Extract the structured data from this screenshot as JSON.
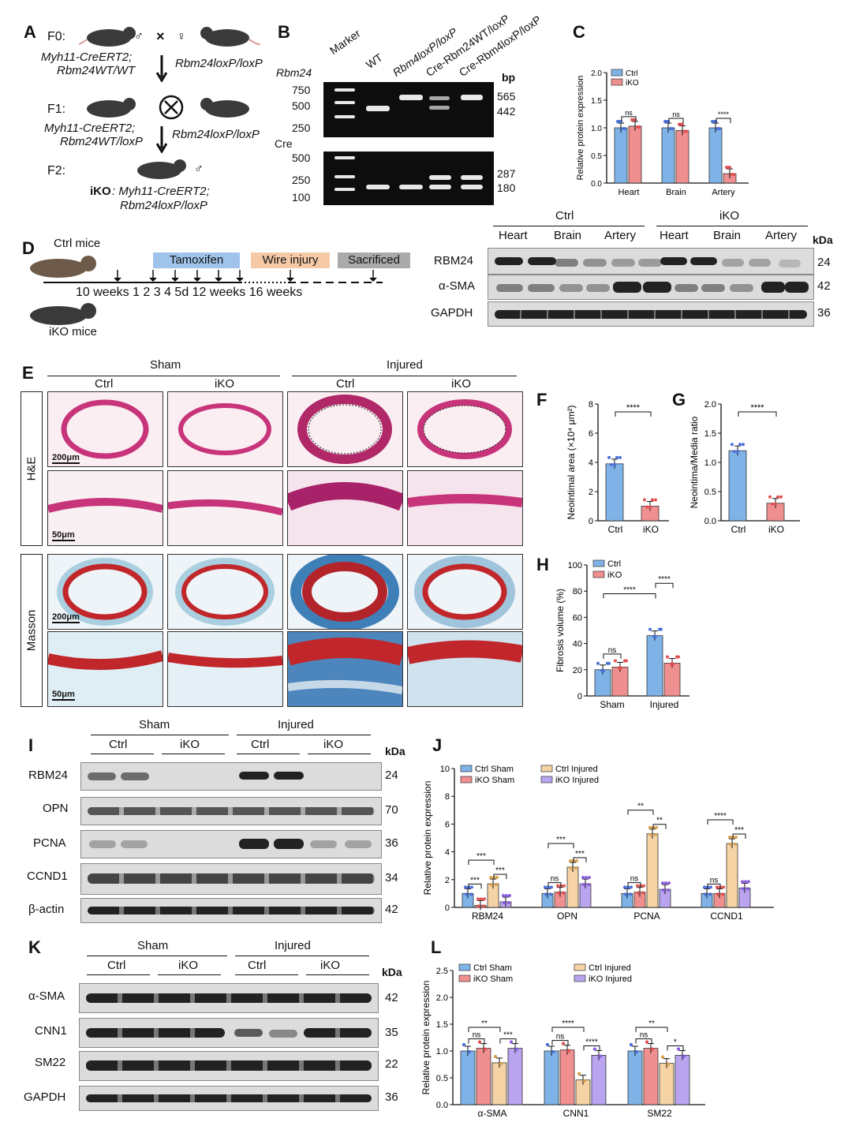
{
  "panels": {
    "A": "A",
    "B": "B",
    "C": "C",
    "D": "D",
    "E": "E",
    "F": "F",
    "G": "G",
    "H": "H",
    "I": "I",
    "J": "J",
    "K": "K",
    "L": "L"
  },
  "panelA": {
    "f0": "F0:",
    "f1": "F1:",
    "f2": "F2:",
    "g0": "Myh11-CreERT2;",
    "g0b": "Rbm24WT/WT",
    "g0r": "Rbm24loxP/loxP",
    "g1": "Myh11-CreERT2;",
    "g1b": "Rbm24WT/loxP",
    "g1r": "Rbm24loxP/loxP",
    "ikoLabel": "iKO",
    "ikoGenotype": ": Myh11-CreERT2;",
    "ikoGenotype2": "Rbm24loxP/loxP",
    "male": "♂",
    "female": "♀",
    "cross": "×"
  },
  "panelB": {
    "gene1": "Rbm24",
    "gene2": "Cre",
    "lanes": [
      "Marker",
      "WT",
      "Rbm4loxP/loxP",
      "Cre-Rbm24WT/loxP",
      "Cre-Rbm4loxP/loxP"
    ],
    "ladder1": [
      "750",
      "500",
      "250"
    ],
    "ladder2": [
      "500",
      "250",
      "100"
    ],
    "sizes1": [
      "565",
      "442"
    ],
    "sizes2": [
      "287",
      "180"
    ],
    "bp": "bp"
  },
  "panelD": {
    "ctrlMice": "Ctrl mice",
    "ikoMice": "iKO mice",
    "tamoxifen": "Tamoxifen",
    "wire": "Wire injury",
    "sacrificed": "Sacrificed",
    "timeline": "10 weeks  1   2   3   4  5d  12 weeks    16 weeks"
  },
  "blotD": {
    "groups": [
      "Ctrl",
      "iKO"
    ],
    "tissues": [
      "Heart",
      "Brain",
      "Artery",
      "Heart",
      "Brain",
      "Artery"
    ],
    "rows": [
      "RBM24",
      "α-SMA",
      "GAPDH"
    ],
    "kda": [
      "24",
      "42",
      "36"
    ],
    "kdaHeader": "kDa"
  },
  "panelE": {
    "sham": "Sham",
    "injured": "Injured",
    "ctrl": "Ctrl",
    "iko": "iKO",
    "he": "H&E",
    "masson": "Masson",
    "scale200": "200μm",
    "scale50": "50μm"
  },
  "blotI": {
    "groups": [
      "Sham",
      "Injured"
    ],
    "sub": [
      "Ctrl",
      "iKO",
      "Ctrl",
      "iKO"
    ],
    "rows": [
      "RBM24",
      "OPN",
      "PCNA",
      "CCND1",
      "β-actin"
    ],
    "kda": [
      "24",
      "70",
      "36",
      "34",
      "42"
    ],
    "kdaHeader": "kDa"
  },
  "blotK": {
    "groups": [
      "Sham",
      "Injured"
    ],
    "sub": [
      "Ctrl",
      "iKO",
      "Ctrl",
      "iKO"
    ],
    "rows": [
      "α-SMA",
      "CNN1",
      "SM22",
      "GAPDH"
    ],
    "kda": [
      "42",
      "35",
      "22",
      "36"
    ],
    "kdaHeader": "kDa"
  },
  "colors": {
    "ctrl": "#7fb3e8",
    "iko": "#f08f8f",
    "ctrlInj": "#f6d3a5",
    "ikoInj": "#b9a4ef"
  },
  "chart_data": [
    {
      "id": "C",
      "type": "bar",
      "ylabel": "Relative protein expression",
      "ylim": [
        0,
        2.0
      ],
      "yticks": [
        "0.0",
        "0.5",
        "1.0",
        "1.5",
        "2.0"
      ],
      "categories": [
        "Heart",
        "Brain",
        "Artery"
      ],
      "series": [
        {
          "name": "Ctrl",
          "values": [
            1.0,
            1.0,
            1.0
          ]
        },
        {
          "name": "iKO",
          "values": [
            1.03,
            0.95,
            0.17
          ]
        }
      ],
      "annotations": [
        "ns",
        "ns",
        "****"
      ]
    },
    {
      "id": "F",
      "type": "bar",
      "ylabel": "Neointimal area (×10⁴ μm²)",
      "ylim": [
        0,
        8
      ],
      "yticks": [
        "0",
        "2",
        "4",
        "6",
        "8"
      ],
      "categories": [
        "Ctrl",
        "iKO"
      ],
      "values": [
        3.9,
        1.0
      ],
      "annotations": [
        "****"
      ]
    },
    {
      "id": "G",
      "type": "bar",
      "ylabel": "Neointima/Media ratio",
      "ylim": [
        0,
        2.0
      ],
      "yticks": [
        "0.0",
        "0.5",
        "1.0",
        "1.5",
        "2.0"
      ],
      "categories": [
        "Ctrl",
        "iKO"
      ],
      "values": [
        1.2,
        0.3
      ],
      "annotations": [
        "****"
      ]
    },
    {
      "id": "H",
      "type": "bar",
      "ylabel": "Fibrosis volume (%)",
      "ylim": [
        0,
        100
      ],
      "yticks": [
        "0",
        "20",
        "40",
        "60",
        "80",
        "100"
      ],
      "categories": [
        "Sham",
        "Injured"
      ],
      "series": [
        {
          "name": "Ctrl",
          "values": [
            20,
            46
          ]
        },
        {
          "name": "iKO",
          "values": [
            22,
            25
          ]
        }
      ],
      "annotations": [
        "ns",
        "****",
        "****"
      ]
    },
    {
      "id": "J",
      "type": "bar",
      "ylabel": "Relative protein expression",
      "ylim": [
        0,
        10
      ],
      "yticks": [
        "0",
        "2",
        "4",
        "6",
        "8",
        "10"
      ],
      "categories": [
        "RBM24",
        "OPN",
        "PCNA",
        "CCND1"
      ],
      "series": [
        {
          "name": "Ctrl Sham",
          "values": [
            1.0,
            1.0,
            1.0,
            1.0
          ]
        },
        {
          "name": "iKO Sham",
          "values": [
            0.15,
            1.1,
            1.1,
            1.0
          ]
        },
        {
          "name": "Ctrl Injured",
          "values": [
            1.7,
            2.9,
            5.3,
            4.6
          ]
        },
        {
          "name": "iKO Injured",
          "values": [
            0.4,
            1.7,
            1.3,
            1.4
          ]
        }
      ],
      "annotations": [
        [
          "***",
          "***",
          "***"
        ],
        [
          "ns",
          "***",
          "***"
        ],
        [
          "ns",
          "**",
          "**"
        ],
        [
          "ns",
          "****",
          "***"
        ]
      ]
    },
    {
      "id": "L",
      "type": "bar",
      "ylabel": "Relative protein expression",
      "ylim": [
        0,
        2.5
      ],
      "yticks": [
        "0.0",
        "0.5",
        "1.0",
        "1.5",
        "2.0",
        "2.5"
      ],
      "categories": [
        "α-SMA",
        "CNN1",
        "SM22"
      ],
      "series": [
        {
          "name": "Ctrl Sham",
          "values": [
            1.0,
            1.0,
            1.0
          ]
        },
        {
          "name": "iKO Sham",
          "values": [
            1.05,
            1.02,
            1.05
          ]
        },
        {
          "name": "Ctrl Injured",
          "values": [
            0.78,
            0.46,
            0.77
          ]
        },
        {
          "name": "iKO Injured",
          "values": [
            1.05,
            0.92,
            0.92
          ]
        }
      ],
      "annotations": [
        [
          "ns",
          "**",
          "***"
        ],
        [
          "ns",
          "****",
          "****"
        ],
        [
          "ns",
          "**",
          "*"
        ]
      ]
    }
  ]
}
